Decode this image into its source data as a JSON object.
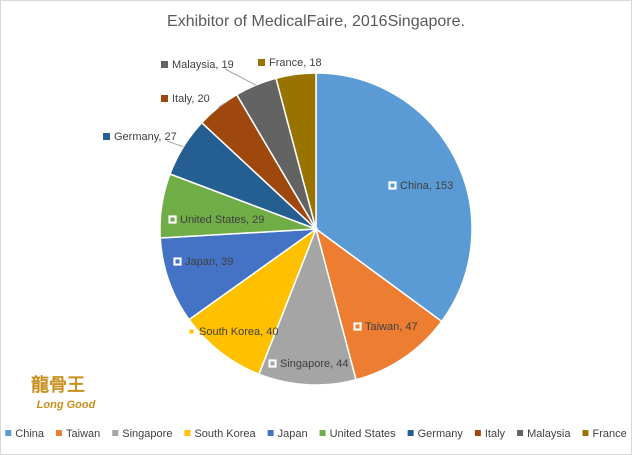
{
  "chart_data": {
    "type": "pie",
    "title": "Exhibitor of MedicalFaire, 2016Singapore.",
    "categories": [
      "China",
      "Taiwan",
      "Singapore",
      "South Korea",
      "Japan",
      "United States",
      "Germany",
      "Italy",
      "Malaysia",
      "France"
    ],
    "values": [
      153,
      47,
      44,
      40,
      39,
      29,
      27,
      20,
      19,
      18
    ],
    "value_labels": [
      "China, 153",
      "Taiwan, 47",
      "Singapore, 44",
      "South Korea, 40",
      "Japan, 39",
      "United States, 29",
      "Germany, 27",
      "Italy, 20",
      "Malaysia, 19",
      "France, 18"
    ],
    "colors": [
      "#5b9bd5",
      "#ed7d31",
      "#a5a5a5",
      "#ffc000",
      "#4472c4",
      "#70ad47",
      "#255e91",
      "#9e480e",
      "#636363",
      "#997300"
    ],
    "legend": "bottom"
  },
  "logo": {
    "chinese": "龍骨王",
    "name": "Long Good"
  }
}
